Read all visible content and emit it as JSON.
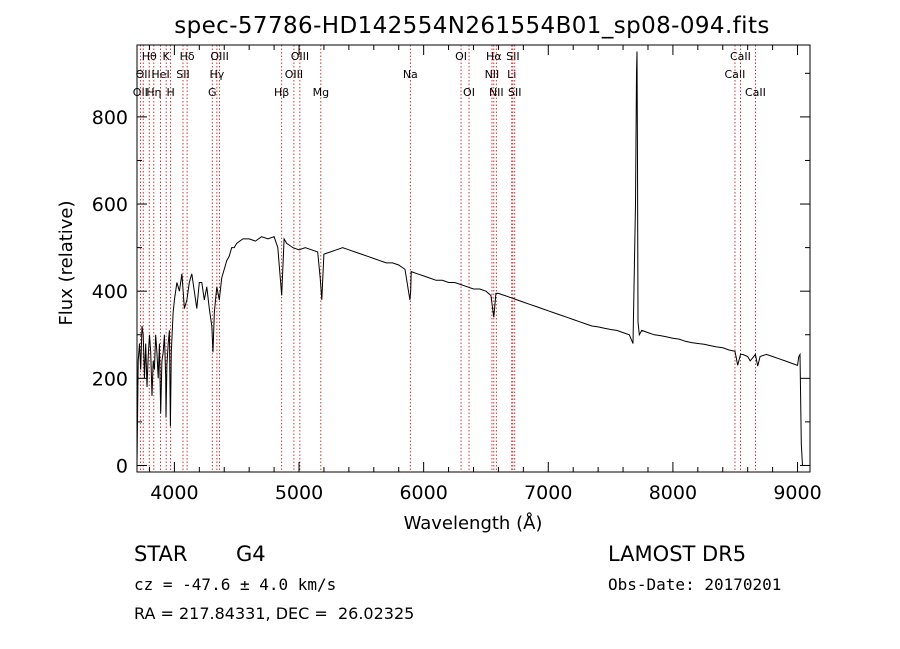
{
  "title": "spec-57786-HD142554N261554B01_sp08-094.fits",
  "chart_data": {
    "type": "line",
    "xlabel": "Wavelength (Å)",
    "ylabel": "Flux (relative)",
    "xlim": [
      3700,
      9100
    ],
    "ylim": [
      -15,
      965
    ],
    "x_ticks": [
      4000,
      5000,
      6000,
      7000,
      8000,
      9000
    ],
    "y_ticks": [
      0,
      200,
      400,
      600,
      800
    ],
    "grid": false,
    "line_color": "#000000",
    "marker_color": "#cc0000",
    "series": [
      {
        "x": [
          3700,
          3710,
          3720,
          3730,
          3740,
          3750,
          3760,
          3770,
          3780,
          3790,
          3800,
          3810,
          3820,
          3830,
          3840,
          3850,
          3860,
          3870,
          3880,
          3890,
          3900,
          3910,
          3920,
          3930,
          3933,
          3940,
          3950,
          3960,
          3968,
          3975,
          3990,
          4000,
          4020,
          4040,
          4060,
          4080,
          4100,
          4120,
          4140,
          4160,
          4180,
          4200,
          4220,
          4240,
          4260,
          4280,
          4300,
          4310,
          4320,
          4340,
          4360,
          4380,
          4400,
          4420,
          4440,
          4460,
          4480,
          4500,
          4550,
          4600,
          4650,
          4700,
          4750,
          4800,
          4830,
          4861,
          4880,
          4900,
          4950,
          5000,
          5050,
          5100,
          5150,
          5170,
          5183,
          5200,
          5250,
          5300,
          5350,
          5400,
          5450,
          5500,
          5550,
          5600,
          5650,
          5700,
          5750,
          5800,
          5850,
          5890,
          5896,
          5900,
          5950,
          6000,
          6050,
          6100,
          6150,
          6200,
          6250,
          6300,
          6350,
          6400,
          6450,
          6500,
          6540,
          6563,
          6580,
          6600,
          6650,
          6700,
          6750,
          6800,
          6850,
          6900,
          6950,
          7000,
          7050,
          7100,
          7150,
          7200,
          7250,
          7300,
          7350,
          7400,
          7450,
          7500,
          7550,
          7600,
          7650,
          7680,
          7700,
          7708,
          7712,
          7716,
          7720,
          7730,
          7750,
          7800,
          7850,
          7900,
          7950,
          8000,
          8050,
          8100,
          8150,
          8200,
          8250,
          8300,
          8350,
          8400,
          8450,
          8498,
          8520,
          8542,
          8560,
          8600,
          8620,
          8662,
          8680,
          8700,
          8750,
          8800,
          8850,
          8900,
          8950,
          9000,
          9010,
          9020,
          9030,
          9040
        ],
        "y": [
          0,
          240,
          280,
          220,
          320,
          300,
          200,
          280,
          180,
          250,
          300,
          260,
          160,
          240,
          220,
          300,
          260,
          200,
          280,
          120,
          240,
          260,
          300,
          200,
          110,
          230,
          280,
          310,
          90,
          260,
          350,
          380,
          420,
          400,
          440,
          360,
          380,
          420,
          440,
          400,
          360,
          420,
          420,
          380,
          410,
          360,
          320,
          260,
          350,
          410,
          380,
          430,
          450,
          470,
          480,
          500,
          500,
          510,
          520,
          520,
          515,
          525,
          520,
          525,
          500,
          390,
          520,
          510,
          500,
          495,
          500,
          495,
          490,
          430,
          380,
          485,
          490,
          495,
          500,
          495,
          490,
          485,
          480,
          475,
          470,
          465,
          465,
          460,
          450,
          380,
          400,
          445,
          440,
          435,
          430,
          425,
          425,
          420,
          420,
          415,
          410,
          405,
          405,
          400,
          390,
          340,
          395,
          395,
          390,
          385,
          380,
          375,
          370,
          365,
          360,
          355,
          350,
          345,
          340,
          335,
          330,
          325,
          320,
          318,
          315,
          312,
          310,
          305,
          300,
          280,
          600,
          900,
          950,
          700,
          330,
          300,
          310,
          305,
          300,
          298,
          295,
          292,
          290,
          285,
          282,
          280,
          278,
          275,
          272,
          270,
          265,
          262,
          230,
          255,
          255,
          250,
          240,
          255,
          228,
          250,
          255,
          250,
          245,
          240,
          235,
          230,
          250,
          255,
          50,
          0
        ]
      }
    ],
    "line_markers": [
      {
        "x": 3727,
        "label": "OII",
        "row": 2
      },
      {
        "x": 3750,
        "label": "OII",
        "row": 1
      },
      {
        "x": 3798,
        "label": "Hθ",
        "row": 0
      },
      {
        "x": 3835,
        "label": "Hη",
        "row": 2
      },
      {
        "x": 3889,
        "label": "HeI",
        "row": 1
      },
      {
        "x": 3934,
        "label": "K",
        "row": 0
      },
      {
        "x": 3970,
        "label": "H",
        "row": 2
      },
      {
        "x": 4069,
        "label": "SII",
        "row": 1
      },
      {
        "x": 4102,
        "label": "Hδ",
        "row": 0
      },
      {
        "x": 4304,
        "label": "G",
        "row": 2
      },
      {
        "x": 4341,
        "label": "Hγ",
        "row": 1
      },
      {
        "x": 4363,
        "label": "OIII",
        "row": 0
      },
      {
        "x": 4861,
        "label": "Hβ",
        "row": 2
      },
      {
        "x": 4959,
        "label": "OIII",
        "row": 1
      },
      {
        "x": 5007,
        "label": "OIII",
        "row": 0
      },
      {
        "x": 5175,
        "label": "Mg",
        "row": 2
      },
      {
        "x": 5893,
        "label": "Na",
        "row": 1
      },
      {
        "x": 6300,
        "label": "OI",
        "row": 0
      },
      {
        "x": 6364,
        "label": "OI",
        "row": 2
      },
      {
        "x": 6548,
        "label": "NII",
        "row": 1
      },
      {
        "x": 6563,
        "label": "Hα",
        "row": 0
      },
      {
        "x": 6583,
        "label": "NII",
        "row": 2
      },
      {
        "x": 6707,
        "label": "Li",
        "row": 1
      },
      {
        "x": 6716,
        "label": "SII",
        "row": 0
      },
      {
        "x": 6731,
        "label": "SII",
        "row": 2
      },
      {
        "x": 8498,
        "label": "CaII",
        "row": 1
      },
      {
        "x": 8542,
        "label": "CaII",
        "row": 0
      },
      {
        "x": 8662,
        "label": "CaII",
        "row": 2
      }
    ]
  },
  "info": {
    "class": "STAR",
    "subclass": "G4",
    "survey": "LAMOST DR5",
    "cz": "cz = -47.6 ± 4.0 km/s",
    "obs_date": "Obs-Date: 20170201",
    "coords": "RA = 217.84331, DEC =  26.02325"
  }
}
